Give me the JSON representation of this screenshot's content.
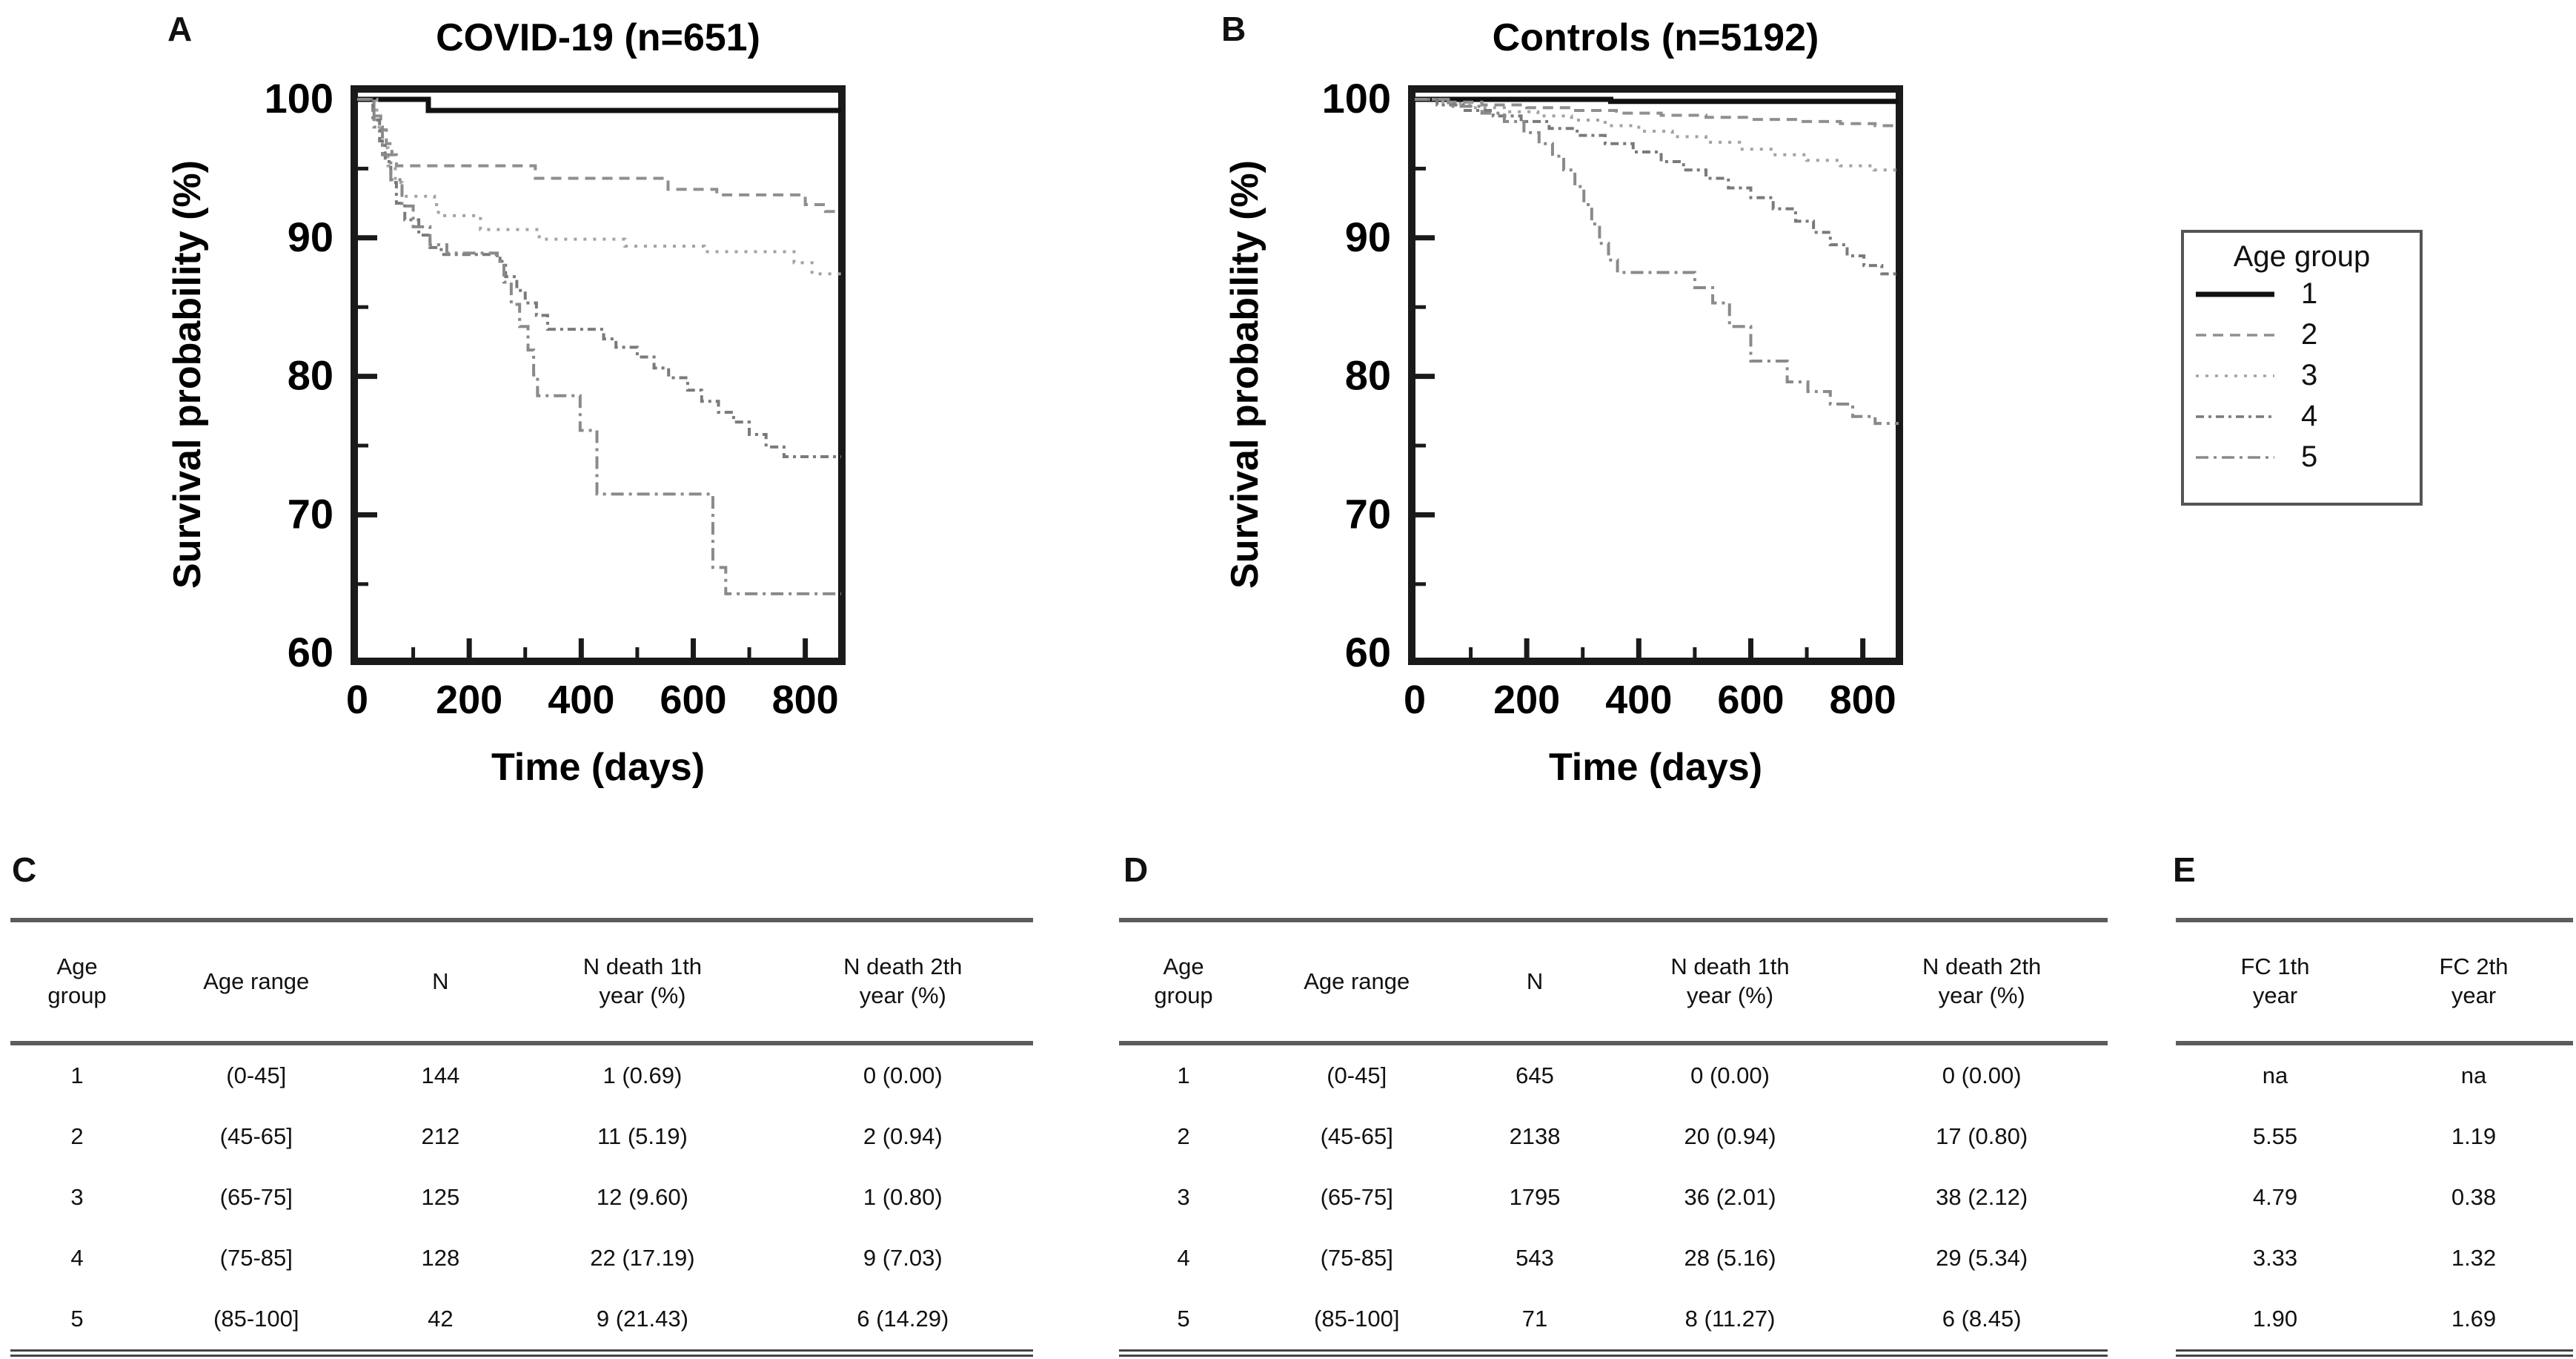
{
  "panels": {
    "a": {
      "letter": "A",
      "title": "COVID-19 (n=651)",
      "ylabel": "Survival probability (%)",
      "xlabel": "Time (days)"
    },
    "b": {
      "letter": "B",
      "title": "Controls (n=5192)",
      "ylabel": "Survival probability (%)",
      "xlabel": "Time (days)"
    }
  },
  "legend": {
    "title": "Age group",
    "items": [
      {
        "label": "1",
        "dash": "none",
        "color": "#111111",
        "swidth": "7"
      },
      {
        "label": "2",
        "dash": "14,9",
        "color": "#8f8f8f",
        "swidth": "3.5"
      },
      {
        "label": "3",
        "dash": "4,9",
        "color": "#a3a3a3",
        "swidth": "3.5"
      },
      {
        "label": "4",
        "dash": "11,6,4,6",
        "color": "#7a7a7a",
        "swidth": "3.5"
      },
      {
        "label": "5",
        "dash": "17,7,4,7",
        "color": "#8a8a8a",
        "swidth": "3.5"
      }
    ]
  },
  "chart_data": [
    {
      "type": "line",
      "subtype": "kaplan-meier-step",
      "panel": "A",
      "title": "COVID-19 (n=651)",
      "xlabel": "Time (days)",
      "ylabel": "Survival probability (%)",
      "xlim": [
        0,
        864
      ],
      "ylim": [
        60,
        100
      ],
      "xticks": [
        0,
        200,
        400,
        600,
        800
      ],
      "xticks_minor": [
        100,
        300,
        500,
        700
      ],
      "yticks": [
        100,
        90,
        80,
        70,
        60
      ],
      "yticks_minor": [
        95,
        85,
        75,
        65
      ],
      "grid": false,
      "legend_position": "outside-right",
      "series": [
        {
          "name": "1",
          "color": "#111111",
          "width": 7,
          "dash": "none",
          "start": 100,
          "steps": [
            [
              127,
              99.2
            ]
          ]
        },
        {
          "name": "2",
          "color": "#8f8f8f",
          "width": 4,
          "dash": "14,9",
          "start": 100,
          "steps": [
            [
              30,
              98.8
            ],
            [
              42,
              97.8
            ],
            [
              52,
              96.8
            ],
            [
              62,
              96.0
            ],
            [
              70,
              95.2
            ],
            [
              318,
              94.3
            ],
            [
              555,
              93.5
            ],
            [
              642,
              93.1
            ],
            [
              800,
              92.4
            ],
            [
              836,
              91.9
            ]
          ]
        },
        {
          "name": "3",
          "color": "#a3a3a3",
          "width": 4,
          "dash": "4,9",
          "start": 100,
          "steps": [
            [
              35,
              98.0
            ],
            [
              45,
              96.5
            ],
            [
              55,
              95.2
            ],
            [
              68,
              94.0
            ],
            [
              80,
              93.0
            ],
            [
              138,
              92.4
            ],
            [
              145,
              91.6
            ],
            [
              220,
              90.6
            ],
            [
              325,
              89.9
            ],
            [
              478,
              89.4
            ],
            [
              620,
              89.0
            ],
            [
              780,
              88.2
            ],
            [
              812,
              87.4
            ]
          ]
        },
        {
          "name": "4",
          "color": "#7a7a7a",
          "width": 4,
          "dash": "11,6,4,6",
          "start": 100,
          "steps": [
            [
              28,
              98.5
            ],
            [
              40,
              97.0
            ],
            [
              50,
              95.5
            ],
            [
              60,
              94.0
            ],
            [
              70,
              92.5
            ],
            [
              85,
              91.3
            ],
            [
              110,
              90.2
            ],
            [
              130,
              89.3
            ],
            [
              150,
              88.8
            ],
            [
              255,
              88.3
            ],
            [
              265,
              87.2
            ],
            [
              285,
              86.2
            ],
            [
              300,
              85.3
            ],
            [
              320,
              84.4
            ],
            [
              340,
              83.4
            ],
            [
              440,
              82.7
            ],
            [
              462,
              82.1
            ],
            [
              500,
              81.4
            ],
            [
              530,
              80.6
            ],
            [
              556,
              79.9
            ],
            [
              590,
              79.0
            ],
            [
              615,
              78.2
            ],
            [
              645,
              77.4
            ],
            [
              672,
              76.7
            ],
            [
              700,
              75.8
            ],
            [
              730,
              74.9
            ],
            [
              762,
              74.2
            ]
          ]
        },
        {
          "name": "5",
          "color": "#8a8a8a",
          "width": 4,
          "dash": "17,7,4,7",
          "start": 100,
          "steps": [
            [
              30,
              98.0
            ],
            [
              45,
              96.0
            ],
            [
              60,
              94.2
            ],
            [
              80,
              92.3
            ],
            [
              100,
              90.8
            ],
            [
              130,
              89.5
            ],
            [
              160,
              88.9
            ],
            [
              250,
              88.3
            ],
            [
              262,
              86.8
            ],
            [
              275,
              85.2
            ],
            [
              290,
              83.6
            ],
            [
              305,
              81.9
            ],
            [
              315,
              80.1
            ],
            [
              322,
              78.6
            ],
            [
              398,
              76.1
            ],
            [
              428,
              71.5
            ],
            [
              635,
              66.2
            ],
            [
              658,
              64.3
            ]
          ]
        }
      ]
    },
    {
      "type": "line",
      "subtype": "kaplan-meier-step",
      "panel": "B",
      "title": "Controls (n=5192)",
      "xlabel": "Time (days)",
      "ylabel": "Survival probability (%)",
      "xlim": [
        0,
        864
      ],
      "ylim": [
        60,
        100
      ],
      "xticks": [
        0,
        200,
        400,
        600,
        800
      ],
      "xticks_minor": [
        100,
        300,
        500,
        700
      ],
      "yticks": [
        100,
        90,
        80,
        70,
        60
      ],
      "yticks_minor": [
        95,
        85,
        75,
        65
      ],
      "grid": false,
      "legend_position": "outside-right",
      "series": [
        {
          "name": "1",
          "color": "#111111",
          "width": 7,
          "dash": "none",
          "start": 100,
          "steps": [
            [
              350,
              99.85
            ]
          ]
        },
        {
          "name": "2",
          "color": "#8f8f8f",
          "width": 4,
          "dash": "14,9",
          "start": 100,
          "steps": [
            [
              60,
              99.8
            ],
            [
              120,
              99.6
            ],
            [
              200,
              99.4
            ],
            [
              280,
              99.2
            ],
            [
              360,
              99.0
            ],
            [
              440,
              98.85
            ],
            [
              520,
              98.7
            ],
            [
              600,
              98.55
            ],
            [
              680,
              98.4
            ],
            [
              760,
              98.25
            ],
            [
              822,
              98.1
            ]
          ]
        },
        {
          "name": "3",
          "color": "#a3a3a3",
          "width": 4,
          "dash": "4,9",
          "start": 100,
          "steps": [
            [
              50,
              99.7
            ],
            [
              100,
              99.4
            ],
            [
              160,
              99.1
            ],
            [
              220,
              98.8
            ],
            [
              280,
              98.5
            ],
            [
              340,
              98.1
            ],
            [
              400,
              97.7
            ],
            [
              460,
              97.3
            ],
            [
              520,
              96.9
            ],
            [
              580,
              96.4
            ],
            [
              640,
              96.0
            ],
            [
              700,
              95.6
            ],
            [
              760,
              95.2
            ],
            [
              820,
              94.9
            ]
          ]
        },
        {
          "name": "4",
          "color": "#7a7a7a",
          "width": 4,
          "dash": "11,6,4,6",
          "start": 100,
          "steps": [
            [
              40,
              99.6
            ],
            [
              90,
              99.2
            ],
            [
              140,
              98.8
            ],
            [
              190,
              98.4
            ],
            [
              240,
              97.9
            ],
            [
              290,
              97.4
            ],
            [
              340,
              96.8
            ],
            [
              390,
              96.2
            ],
            [
              440,
              95.5
            ],
            [
              480,
              94.9
            ],
            [
              520,
              94.3
            ],
            [
              560,
              93.6
            ],
            [
              600,
              92.9
            ],
            [
              640,
              92.1
            ],
            [
              680,
              91.2
            ],
            [
              712,
              90.4
            ],
            [
              742,
              89.5
            ],
            [
              772,
              88.7
            ],
            [
              802,
              88.0
            ],
            [
              834,
              87.4
            ]
          ]
        },
        {
          "name": "5",
          "color": "#8a8a8a",
          "width": 4,
          "dash": "17,7,4,7",
          "start": 100,
          "steps": [
            [
              60,
              99.5
            ],
            [
              120,
              99.0
            ],
            [
              160,
              98.4
            ],
            [
              195,
              97.6
            ],
            [
              222,
              96.8
            ],
            [
              246,
              95.9
            ],
            [
              266,
              94.9
            ],
            [
              286,
              93.7
            ],
            [
              302,
              92.4
            ],
            [
              316,
              91.0
            ],
            [
              330,
              89.6
            ],
            [
              346,
              88.4
            ],
            [
              362,
              87.5
            ],
            [
              500,
              86.4
            ],
            [
              532,
              85.3
            ],
            [
              562,
              83.6
            ],
            [
              600,
              81.1
            ],
            [
              665,
              79.6
            ],
            [
              702,
              78.9
            ],
            [
              742,
              78.0
            ],
            [
              782,
              77.1
            ],
            [
              822,
              76.6
            ]
          ]
        }
      ]
    }
  ],
  "tables": {
    "c": {
      "letter": "C",
      "headers": [
        "Age\ngroup",
        "Age range",
        "N",
        "N death 1th\nyear (%)",
        "N death 2th\nyear (%)"
      ],
      "rows": [
        [
          "1",
          "(0-45]",
          "144",
          "1 (0.69)",
          "0 (0.00)"
        ],
        [
          "2",
          "(45-65]",
          "212",
          "11 (5.19)",
          "2 (0.94)"
        ],
        [
          "3",
          "(65-75]",
          "125",
          "12 (9.60)",
          "1 (0.80)"
        ],
        [
          "4",
          "(75-85]",
          "128",
          "22 (17.19)",
          "9 (7.03)"
        ],
        [
          "5",
          "(85-100]",
          "42",
          "9 (21.43)",
          "6 (14.29)"
        ]
      ]
    },
    "d": {
      "letter": "D",
      "headers": [
        "Age\ngroup",
        "Age range",
        "N",
        "N death 1th\nyear (%)",
        "N death 2th\nyear (%)"
      ],
      "rows": [
        [
          "1",
          "(0-45]",
          "645",
          "0 (0.00)",
          "0 (0.00)"
        ],
        [
          "2",
          "(45-65]",
          "2138",
          "20 (0.94)",
          "17 (0.80)"
        ],
        [
          "3",
          "(65-75]",
          "1795",
          "36 (2.01)",
          "38 (2.12)"
        ],
        [
          "4",
          "(75-85]",
          "543",
          "28 (5.16)",
          "29 (5.34)"
        ],
        [
          "5",
          "(85-100]",
          "71",
          "8 (11.27)",
          "6 (8.45)"
        ]
      ]
    },
    "e": {
      "letter": "E",
      "headers": [
        "FC 1th\nyear",
        "FC 2th\nyear"
      ],
      "rows": [
        [
          "na",
          "na"
        ],
        [
          "5.55",
          "1.19"
        ],
        [
          "4.79",
          "0.38"
        ],
        [
          "3.33",
          "1.32"
        ],
        [
          "1.90",
          "1.69"
        ]
      ]
    }
  }
}
